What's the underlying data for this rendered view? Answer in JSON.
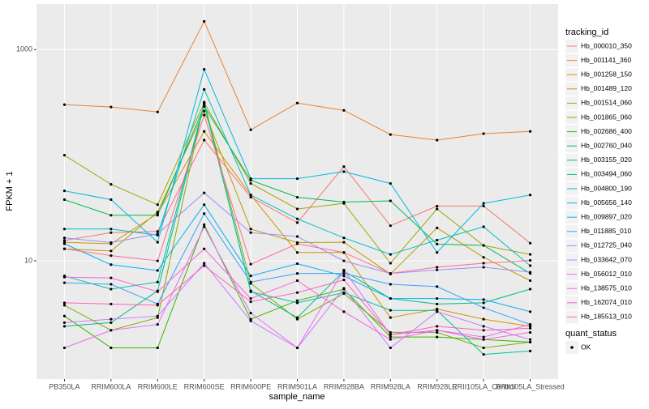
{
  "chart_data": {
    "type": "line",
    "x_label": "sample_name",
    "y_label": "FPKM + 1",
    "log_scale": true,
    "grid": true,
    "ylim": [
      0.76,
      2700
    ],
    "yticks": [
      10,
      1000
    ],
    "legend_title": "tracking_id",
    "point_legend_title": "quant_status",
    "point_legend_label": "OK",
    "point_color": "#000000",
    "categories": [
      "PB350LA",
      "RRIM600LA",
      "RRIM600LE",
      "RRIM600SE",
      "RRIM600PE",
      "RRIM901LA",
      "RRIM928BA",
      "RRIM928LA",
      "RRIM928LE",
      "RRII105LA_Control",
      "RRII105LA_Stressed"
    ],
    "series": [
      {
        "name": "Hb_000010_350",
        "color": "#F8766D",
        "values": [
          15.6,
          18.5,
          19,
          139,
          40,
          23,
          78,
          21.5,
          33,
          33,
          14.7
        ]
      },
      {
        "name": "Hb_001141_360",
        "color": "#EA8331",
        "values": [
          301,
          286,
          257,
          1850,
          174,
          312,
          266,
          157,
          139,
          160,
          168
        ]
      },
      {
        "name": "Hb_001258_150",
        "color": "#D89000",
        "values": [
          15,
          14.5,
          28,
          168,
          42,
          12,
          12,
          2.9,
          3.5,
          2.8,
          2.4
        ]
      },
      {
        "name": "Hb_001489_120",
        "color": "#C09B00",
        "values": [
          13,
          12.4,
          29,
          262,
          20,
          14.9,
          15,
          7.5,
          20.5,
          10.8,
          6.5
        ]
      },
      {
        "name": "Hb_001514_060",
        "color": "#A3A500",
        "values": [
          100,
          53,
          34,
          314,
          54,
          31,
          35,
          9.5,
          31,
          14,
          11.5
        ]
      },
      {
        "name": "Hb_001865_060",
        "color": "#7CAE00",
        "values": [
          3.8,
          2.2,
          2.9,
          318,
          6.1,
          2.8,
          4.9,
          2.1,
          2.1,
          1.5,
          1.7
        ]
      },
      {
        "name": "Hb_002686_400",
        "color": "#39B600",
        "values": [
          3.0,
          1.5,
          1.5,
          22,
          2.8,
          4.2,
          5.4,
          1.9,
          1.9,
          1.8,
          1.7
        ]
      },
      {
        "name": "Hb_002760_040",
        "color": "#00BB4E",
        "values": [
          38,
          27,
          27,
          290,
          58,
          40,
          36,
          37,
          14.4,
          14,
          7.6
        ]
      },
      {
        "name": "Hb_003155_020",
        "color": "#00BF7D",
        "values": [
          2.4,
          2.6,
          5.2,
          305,
          5.2,
          2.9,
          8.0,
          4.4,
          3.9,
          4.0,
          5.4
        ]
      },
      {
        "name": "Hb_003494_060",
        "color": "#00C1A3",
        "values": [
          7.2,
          5.4,
          6.3,
          310,
          5.1,
          4.0,
          5.0,
          3.4,
          3.4,
          1.3,
          1.4
        ]
      },
      {
        "name": "Hb_004800_190",
        "color": "#00BFC4",
        "values": [
          20,
          20,
          17.5,
          420,
          42,
          25,
          16.5,
          11.5,
          15.7,
          21,
          9
        ]
      },
      {
        "name": "Hb_005656_140",
        "color": "#00BAE0",
        "values": [
          46,
          38,
          15,
          650,
          60,
          60,
          70,
          54,
          12,
          35,
          42
        ]
      },
      {
        "name": "Hb_009897_020",
        "color": "#00B0F6",
        "values": [
          14.5,
          9.2,
          8.1,
          34,
          7.2,
          9.4,
          7.2,
          4.4,
          4.4,
          4.3,
          3.3
        ]
      },
      {
        "name": "Hb_011885_010",
        "color": "#35A2FF",
        "values": [
          6.2,
          6.0,
          3.9,
          28,
          6.3,
          7.6,
          7.6,
          6.0,
          5.7,
          3.6,
          2.5
        ]
      },
      {
        "name": "Hb_012725_040",
        "color": "#9590FF",
        "values": [
          16.5,
          14.9,
          18,
          44,
          18.5,
          17,
          10,
          7.6,
          8.2,
          8.7,
          7.8
        ]
      },
      {
        "name": "Hb_033642_070",
        "color": "#C77CFF",
        "values": [
          2.6,
          2.8,
          3.0,
          9.5,
          2.7,
          1.5,
          5.5,
          1.5,
          3.3,
          2.4,
          1.8
        ]
      },
      {
        "name": "Hb_056012_010",
        "color": "#E76BF3",
        "values": [
          1.5,
          2.2,
          2.5,
          21,
          3.2,
          1.5,
          8.2,
          2.0,
          2.2,
          1.9,
          2.5
        ]
      },
      {
        "name": "Hb_138575_010",
        "color": "#FA62DB",
        "values": [
          7.0,
          6.9,
          5.1,
          13,
          4.4,
          6.5,
          3.3,
          1.8,
          2.2,
          1.8,
          2.1
        ]
      },
      {
        "name": "Hb_162074_010",
        "color": "#FF62BC",
        "values": [
          4.0,
          3.9,
          3.8,
          9.0,
          4.1,
          5.0,
          6.6,
          2.0,
          2.4,
          2.2,
          2.3
        ]
      },
      {
        "name": "Hb_185513_010",
        "color": "#FF6C91",
        "values": [
          13,
          11.2,
          10,
          240,
          9.3,
          14.5,
          12.0,
          7.6,
          8.7,
          9.5,
          10.1
        ]
      }
    ]
  }
}
